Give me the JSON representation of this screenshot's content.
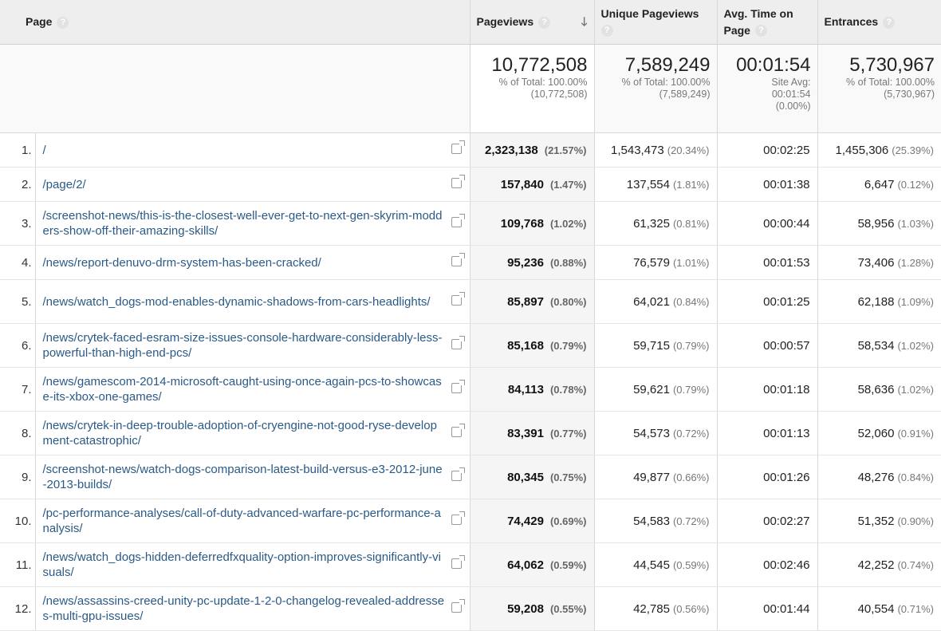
{
  "columns": {
    "page": "Page",
    "pageviews": "Pageviews",
    "unique_pageviews": "Unique Pageviews",
    "avg_time": "Avg. Time on Page",
    "entrances": "Entrances",
    "help_glyph": "?",
    "sort_arrow": "🡓"
  },
  "totals": {
    "pageviews": {
      "value": "10,772,508",
      "line1": "% of Total: 100.00%",
      "line2": "(10,772,508)"
    },
    "unique_pageviews": {
      "value": "7,589,249",
      "line1": "% of Total: 100.00%",
      "line2": "(7,589,249)"
    },
    "avg_time": {
      "value": "00:01:54",
      "line1": "Site Avg:",
      "line2": "00:01:54",
      "line3": "(0.00%)"
    },
    "entrances": {
      "value": "5,730,967",
      "line1": "% of Total: 100.00%",
      "line2": "(5,730,967)"
    }
  },
  "rows": [
    {
      "index": "1.",
      "page": "/",
      "pageviews": "2,323,138",
      "pageviews_pct": "(21.57%)",
      "unique": "1,543,473",
      "unique_pct": "(20.34%)",
      "avg_time": "00:02:25",
      "entrances": "1,455,306",
      "entrances_pct": "(25.39%)"
    },
    {
      "index": "2.",
      "page": "/page/2/",
      "pageviews": "157,840",
      "pageviews_pct": "(1.47%)",
      "unique": "137,554",
      "unique_pct": "(1.81%)",
      "avg_time": "00:01:38",
      "entrances": "6,647",
      "entrances_pct": "(0.12%)"
    },
    {
      "index": "3.",
      "page": "/screenshot-news/this-is-the-closest-well-ever-get-to-next-gen-skyrim-modders-show-off-their-amazing-skills/",
      "pageviews": "109,768",
      "pageviews_pct": "(1.02%)",
      "unique": "61,325",
      "unique_pct": "(0.81%)",
      "avg_time": "00:00:44",
      "entrances": "58,956",
      "entrances_pct": "(1.03%)"
    },
    {
      "index": "4.",
      "page": "/news/report-denuvo-drm-system-has-been-cracked/",
      "pageviews": "95,236",
      "pageviews_pct": "(0.88%)",
      "unique": "76,579",
      "unique_pct": "(1.01%)",
      "avg_time": "00:01:53",
      "entrances": "73,406",
      "entrances_pct": "(1.28%)"
    },
    {
      "index": "5.",
      "page": "/news/watch_dogs-mod-enables-dynamic-shadows-from-cars-headlights/",
      "pageviews": "85,897",
      "pageviews_pct": "(0.80%)",
      "unique": "64,021",
      "unique_pct": "(0.84%)",
      "avg_time": "00:01:25",
      "entrances": "62,188",
      "entrances_pct": "(1.09%)"
    },
    {
      "index": "6.",
      "page": "/news/crytek-faced-esram-size-issues-console-hardware-considerably-less-powerful-than-high-end-pcs/",
      "pageviews": "85,168",
      "pageviews_pct": "(0.79%)",
      "unique": "59,715",
      "unique_pct": "(0.79%)",
      "avg_time": "00:00:57",
      "entrances": "58,534",
      "entrances_pct": "(1.02%)"
    },
    {
      "index": "7.",
      "page": "/news/gamescom-2014-microsoft-caught-using-once-again-pcs-to-showcase-its-xbox-one-games/",
      "pageviews": "84,113",
      "pageviews_pct": "(0.78%)",
      "unique": "59,621",
      "unique_pct": "(0.79%)",
      "avg_time": "00:01:18",
      "entrances": "58,636",
      "entrances_pct": "(1.02%)"
    },
    {
      "index": "8.",
      "page": "/news/crytek-in-deep-trouble-adoption-of-cryengine-not-good-ryse-development-catastrophic/",
      "pageviews": "83,391",
      "pageviews_pct": "(0.77%)",
      "unique": "54,573",
      "unique_pct": "(0.72%)",
      "avg_time": "00:01:13",
      "entrances": "52,060",
      "entrances_pct": "(0.91%)"
    },
    {
      "index": "9.",
      "page": "/screenshot-news/watch-dogs-comparison-latest-build-versus-e3-2012-june-2013-builds/",
      "pageviews": "80,345",
      "pageviews_pct": "(0.75%)",
      "unique": "49,877",
      "unique_pct": "(0.66%)",
      "avg_time": "00:01:26",
      "entrances": "48,276",
      "entrances_pct": "(0.84%)"
    },
    {
      "index": "10.",
      "page": "/pc-performance-analyses/call-of-duty-advanced-warfare-pc-performance-analysis/",
      "pageviews": "74,429",
      "pageviews_pct": "(0.69%)",
      "unique": "54,583",
      "unique_pct": "(0.72%)",
      "avg_time": "00:02:27",
      "entrances": "51,352",
      "entrances_pct": "(0.90%)"
    },
    {
      "index": "11.",
      "page": "/news/watch_dogs-hidden-deferredfxquality-option-improves-significantly-visuals/",
      "pageviews": "64,062",
      "pageviews_pct": "(0.59%)",
      "unique": "44,545",
      "unique_pct": "(0.59%)",
      "avg_time": "00:02:46",
      "entrances": "42,252",
      "entrances_pct": "(0.74%)"
    },
    {
      "index": "12.",
      "page": "/news/assassins-creed-unity-pc-update-1-2-0-changelog-revealed-addresses-multi-gpu-issues/",
      "pageviews": "59,208",
      "pageviews_pct": "(0.55%)",
      "unique": "42,785",
      "unique_pct": "(0.56%)",
      "avg_time": "00:01:44",
      "entrances": "40,554",
      "entrances_pct": "(0.71%)"
    }
  ]
}
